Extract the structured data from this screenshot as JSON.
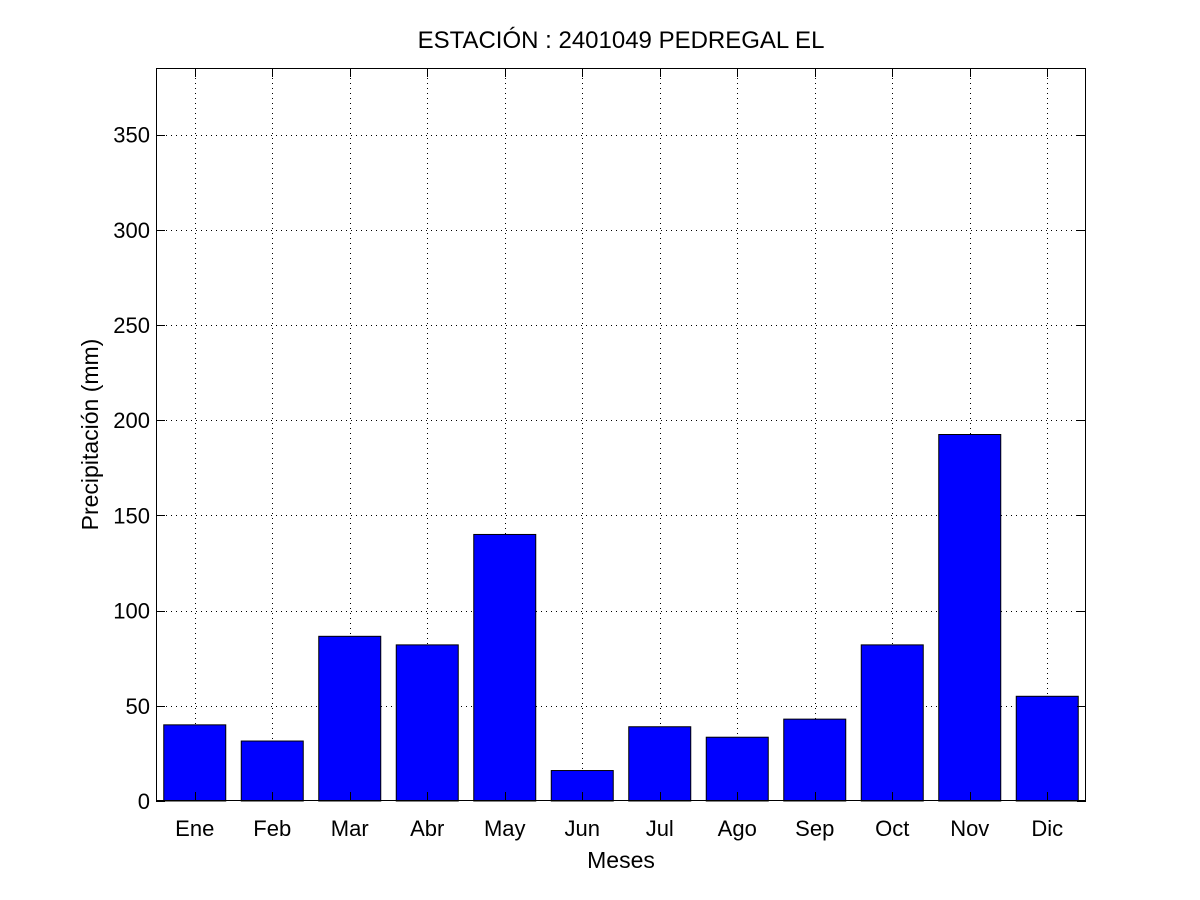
{
  "chart_data": {
    "type": "bar",
    "title": "ESTACIÓN :  2401049  PEDREGAL EL",
    "xlabel": "Meses",
    "ylabel": "Precipitación (mm)",
    "categories": [
      "Ene",
      "Feb",
      "Mar",
      "Abr",
      "May",
      "Jun",
      "Jul",
      "Ago",
      "Sep",
      "Oct",
      "Nov",
      "Dic"
    ],
    "values": [
      40,
      31.5,
      86.5,
      82,
      140,
      16,
      39,
      33.5,
      43,
      82,
      192.5,
      55
    ],
    "ylim": [
      0,
      385
    ],
    "yticks": [
      0,
      50,
      100,
      150,
      200,
      250,
      300,
      350
    ],
    "grid": true,
    "bar_color": "#0000ff",
    "legend": "none"
  }
}
